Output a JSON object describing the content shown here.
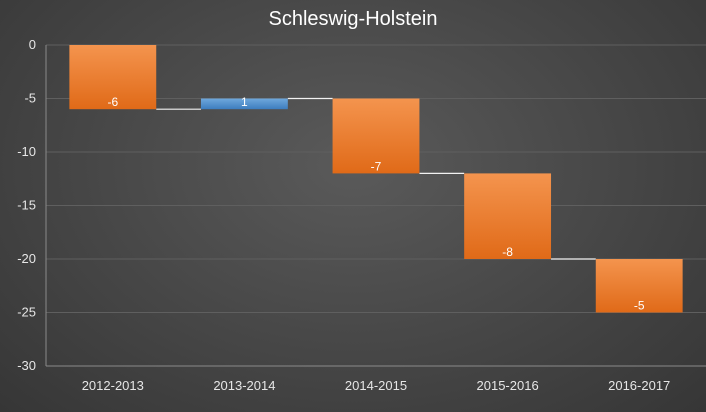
{
  "chart_data": {
    "type": "bar",
    "subtype": "waterfall",
    "title": "Schleswig-Holstein",
    "xlabel": "",
    "ylabel": "",
    "categories": [
      "2012-2013",
      "2013-2014",
      "2014-2015",
      "2015-2016",
      "2016-2017"
    ],
    "values": [
      -6,
      1,
      -7,
      -8,
      -5
    ],
    "data_labels": [
      "-6",
      "1",
      "-7",
      "-8",
      "-5"
    ],
    "yticks": [
      "0",
      "-5",
      "-10",
      "-15",
      "-20",
      "-25",
      "-30"
    ],
    "ylim": [
      -30,
      0
    ],
    "grid": true,
    "legend": "none",
    "colors": {
      "decrease": "#ED7D31",
      "increase": "#5B9BD5",
      "connector": "#f2f2f2",
      "grid": "#5f5f5f"
    }
  }
}
